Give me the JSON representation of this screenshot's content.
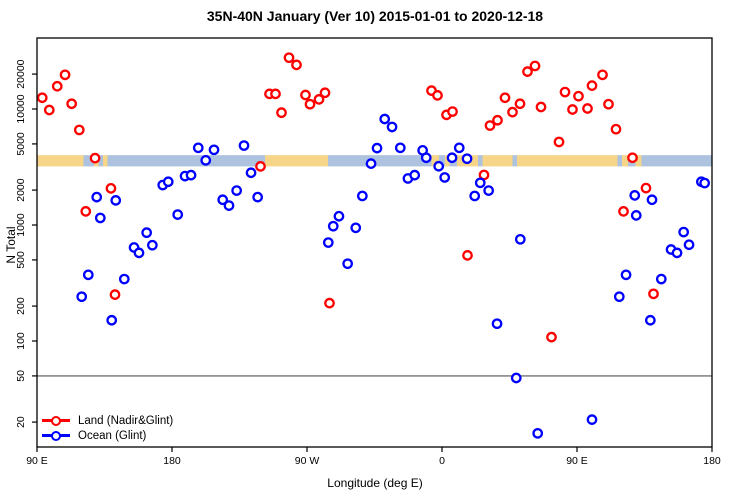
{
  "title": "35N-40N January (Ver 10)   2015-01-01 to 2020-12-18",
  "legend": {
    "items": [
      {
        "label": "Land (Nadir&Glint)",
        "color": "#ff0000"
      },
      {
        "label": "Ocean (Glint)",
        "color": "#0000ff"
      }
    ]
  },
  "chart_data": {
    "type": "scatter",
    "title": "35N-40N January (Ver 10)   2015-01-01 to 2020-12-18",
    "xlabel": "Longitude (deg E)",
    "ylabel": "N Total",
    "y_scale": "log",
    "ylim": [
      14,
      30000
    ],
    "y_ticks": [
      20,
      50,
      100,
      200,
      500,
      1000,
      2000,
      5000,
      10000,
      20000
    ],
    "x_axis_note": "axis runs eastward 450 deg starting at 90E; positions below are deg east of 90E",
    "x_axis_span_deg": 450,
    "x_ticks": [
      {
        "pos": 0,
        "label": "90 E"
      },
      {
        "pos": 90,
        "label": "180"
      },
      {
        "pos": 180,
        "label": "90 W"
      },
      {
        "pos": 270,
        "label": "0"
      },
      {
        "pos": 360,
        "label": "90 E"
      },
      {
        "pos": 450,
        "label": "180"
      }
    ],
    "hline_n": 50,
    "hline_color": "#555555",
    "map_band": {
      "description": "land/ocean strip map along 35N-40N drawn across the plot",
      "n_range": [
        3200,
        4000
      ],
      "land_color": "#f6d488",
      "ocean_color": "#adc2de",
      "segments": [
        [
          "land",
          0,
          31
        ],
        [
          "ocean",
          31,
          38
        ],
        [
          "land",
          38,
          41
        ],
        [
          "ocean",
          41,
          44
        ],
        [
          "land",
          44,
          47
        ],
        [
          "ocean",
          47,
          152
        ],
        [
          "land",
          152,
          194
        ],
        [
          "ocean",
          194,
          263
        ],
        [
          "land",
          263,
          268
        ],
        [
          "ocean",
          268,
          272
        ],
        [
          "land",
          272,
          275
        ],
        [
          "ocean",
          275,
          280
        ],
        [
          "land",
          280,
          294
        ],
        [
          "ocean",
          294,
          297
        ],
        [
          "land",
          297,
          317
        ],
        [
          "ocean",
          317,
          320
        ],
        [
          "land",
          320,
          387
        ],
        [
          "ocean",
          387,
          390
        ],
        [
          "land",
          390,
          394
        ],
        [
          "ocean",
          394,
          399
        ],
        [
          "land",
          399,
          403
        ],
        [
          "ocean",
          403,
          450
        ]
      ]
    },
    "series": [
      {
        "name": "Land (Nadir&Glint)",
        "color": "#ff0000",
        "points": [
          [
            3.5,
            12500
          ],
          [
            13.5,
            15700
          ],
          [
            18.7,
            19700
          ],
          [
            8.2,
            9800
          ],
          [
            23.1,
            11100
          ],
          [
            28.2,
            6600
          ],
          [
            38.7,
            3770
          ],
          [
            49.3,
            2070
          ],
          [
            32.5,
            1310
          ],
          [
            52,
            251
          ],
          [
            168,
            27700
          ],
          [
            173,
            24000
          ],
          [
            155,
            13500
          ],
          [
            159,
            13500
          ],
          [
            163,
            9300
          ],
          [
            179,
            13200
          ],
          [
            182,
            11000
          ],
          [
            188,
            12100
          ],
          [
            192,
            13800
          ],
          [
            149,
            3200
          ],
          [
            195,
            212
          ],
          [
            263,
            14400
          ],
          [
            267,
            13100
          ],
          [
            273,
            8900
          ],
          [
            277,
            9500
          ],
          [
            327,
            21000
          ],
          [
            332,
            23500
          ],
          [
            312,
            12500
          ],
          [
            317,
            9400
          ],
          [
            322,
            11100
          ],
          [
            302,
            7200
          ],
          [
            307,
            8000
          ],
          [
            336,
            10400
          ],
          [
            348,
            5200
          ],
          [
            352,
            14000
          ],
          [
            357,
            9900
          ],
          [
            361,
            12900
          ],
          [
            367,
            10100
          ],
          [
            370,
            15900
          ],
          [
            377,
            19700
          ],
          [
            381,
            11000
          ],
          [
            386,
            6700
          ],
          [
            397,
            3800
          ],
          [
            406,
            2080
          ],
          [
            391,
            1310
          ],
          [
            287,
            547
          ],
          [
            411,
            255
          ],
          [
            343,
            108
          ],
          [
            298,
            2700
          ]
        ]
      },
      {
        "name": "Ocean (Glint)",
        "color": "#0000ff",
        "points": [
          [
            39.8,
            1740
          ],
          [
            52.5,
            1630
          ],
          [
            42.2,
            1150
          ],
          [
            34.2,
            372
          ],
          [
            58.2,
            342
          ],
          [
            29.8,
            241
          ],
          [
            49.8,
            151
          ],
          [
            73.1,
            859
          ],
          [
            76.9,
            670
          ],
          [
            64.7,
            640
          ],
          [
            68,
            575
          ],
          [
            83.8,
            2210
          ],
          [
            87.5,
            2360
          ],
          [
            98.7,
            2640
          ],
          [
            102.7,
            2690
          ],
          [
            107.5,
            4630
          ],
          [
            118,
            4450
          ],
          [
            112.5,
            3610
          ],
          [
            138,
            4840
          ],
          [
            142.7,
            2820
          ],
          [
            123.8,
            1650
          ],
          [
            128,
            1470
          ],
          [
            133.1,
            1980
          ],
          [
            147.1,
            1740
          ],
          [
            93.8,
            1230
          ],
          [
            194.2,
            706
          ],
          [
            197.5,
            977
          ],
          [
            201.3,
            1190
          ],
          [
            212.5,
            946
          ],
          [
            216.9,
            1780
          ],
          [
            207.1,
            464
          ],
          [
            226.7,
            4600
          ],
          [
            222.7,
            3380
          ],
          [
            231.8,
            8200
          ],
          [
            236.7,
            7000
          ],
          [
            242.2,
            4630
          ],
          [
            257.1,
            4400
          ],
          [
            259.5,
            3800
          ],
          [
            267.8,
            3210
          ],
          [
            276.7,
            3800
          ],
          [
            281.5,
            4630
          ],
          [
            286.7,
            3730
          ],
          [
            247.3,
            2520
          ],
          [
            251.8,
            2690
          ],
          [
            271.8,
            2570
          ],
          [
            295.5,
            2310
          ],
          [
            301.1,
            1980
          ],
          [
            291.8,
            1780
          ],
          [
            322.2,
            753
          ],
          [
            398.5,
            1800
          ],
          [
            410,
            1650
          ],
          [
            399.5,
            1210
          ],
          [
            431.1,
            869
          ],
          [
            442.9,
            2360
          ],
          [
            445.1,
            2300
          ],
          [
            422.7,
            615
          ],
          [
            426.7,
            575
          ],
          [
            434.7,
            676
          ],
          [
            392.7,
            372
          ],
          [
            416.2,
            342
          ],
          [
            388.2,
            241
          ],
          [
            408.9,
            151
          ],
          [
            306.7,
            141
          ],
          [
            319.5,
            48
          ],
          [
            370,
            21
          ],
          [
            333.8,
            16
          ]
        ]
      }
    ]
  }
}
